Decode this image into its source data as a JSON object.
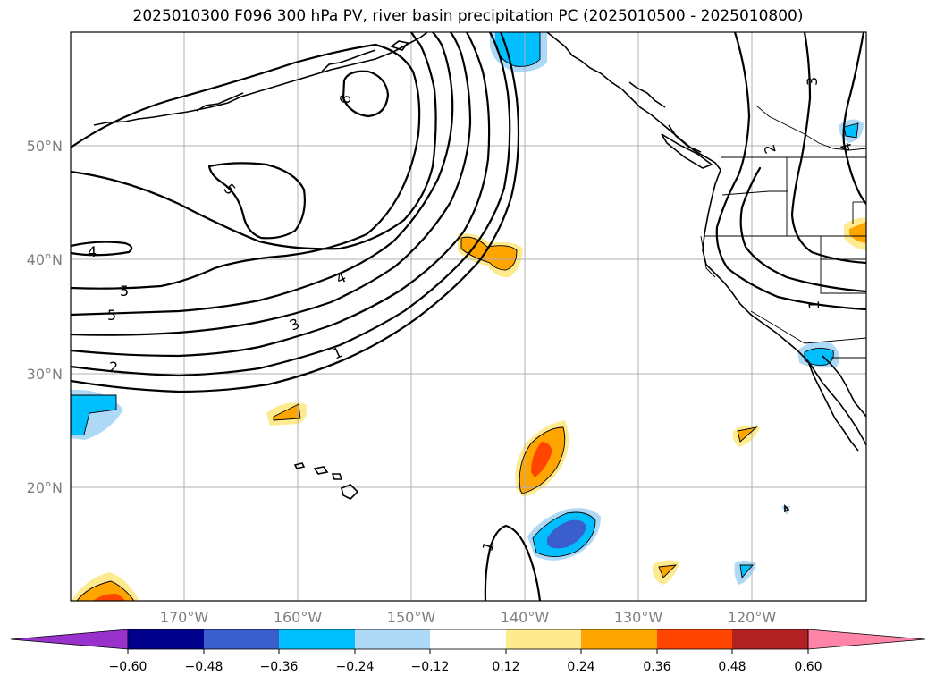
{
  "title": "2025010300 F096 300 hPa PV, river basin precipitation PC (2025010500 - 2025010800)",
  "lat_labels": [
    "50°N",
    "40°N",
    "30°N",
    "20°N"
  ],
  "lon_labels": [
    "170°W",
    "160°W",
    "150°W",
    "140°W",
    "130°W",
    "120°W"
  ],
  "contour_labels": [
    "6",
    "5",
    "4",
    "5",
    "5",
    "2",
    "4",
    "3",
    "1",
    "3",
    "2",
    "4",
    "1",
    "1"
  ],
  "colorbar": {
    "tick_labels": [
      "−0.60",
      "−0.48",
      "−0.36",
      "−0.24",
      "−0.12",
      "0.12",
      "0.24",
      "0.36",
      "0.48",
      "0.60"
    ],
    "colors": [
      "#9932cc",
      "#00008b",
      "#3a5fcd",
      "#00bfff",
      "#add8f6",
      "#ffffff",
      "#ffeb8f",
      "#ffa500",
      "#ff4500",
      "#b22222",
      "#ff85a8"
    ]
  },
  "colors": {
    "light_blue": "#add8f6",
    "blue": "#00bfff",
    "royal_blue": "#3a5fcd",
    "yellow": "#ffeb8f",
    "orange": "#ffa500",
    "red_orange": "#ff4500"
  }
}
